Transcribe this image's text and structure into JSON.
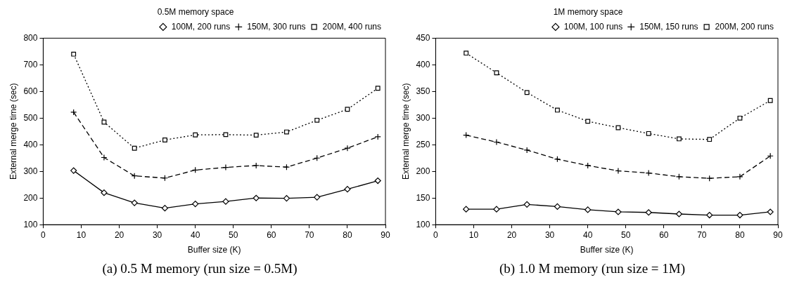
{
  "chart_data": [
    {
      "type": "line",
      "title": "0.5M memory space",
      "xlabel": "Buffer size (K)",
      "ylabel": "External merge time (sec)",
      "x": [
        8,
        16,
        24,
        32,
        40,
        48,
        56,
        64,
        72,
        80,
        88
      ],
      "xlim": [
        0,
        90
      ],
      "xticks": [
        0,
        10,
        20,
        30,
        40,
        50,
        60,
        70,
        80,
        90
      ],
      "ylim": [
        100,
        800
      ],
      "yticks": [
        100,
        200,
        300,
        400,
        500,
        600,
        700,
        800
      ],
      "grid": false,
      "legend": "top right",
      "annotations": [
        "(a) 0.5 M memory (run size = 0.5M)"
      ],
      "series": [
        {
          "name": "100M, 200 runs",
          "color": "#000000",
          "marker": "diamond",
          "line_style": "solid",
          "values": [
            303,
            220,
            182,
            162,
            178,
            187,
            200,
            199,
            203,
            233,
            265
          ]
        },
        {
          "name": "150M, 300 runs",
          "color": "#000000",
          "marker": "cross",
          "line_style": "dashed",
          "values": [
            522,
            352,
            283,
            275,
            305,
            315,
            322,
            316,
            350,
            387,
            430
          ]
        },
        {
          "name": "200M, 400 runs",
          "color": "#000000",
          "marker": "square",
          "line_style": "dotted",
          "values": [
            740,
            485,
            387,
            418,
            437,
            438,
            436,
            448,
            492,
            533,
            612
          ]
        }
      ]
    },
    {
      "type": "line",
      "title": "1M memory space",
      "xlabel": "Buffer size (K)",
      "ylabel": "External merge time (sec)",
      "x": [
        8,
        16,
        24,
        32,
        40,
        48,
        56,
        64,
        72,
        80,
        88
      ],
      "xlim": [
        0,
        90
      ],
      "xticks": [
        0,
        10,
        20,
        30,
        40,
        50,
        60,
        70,
        80,
        90
      ],
      "ylim": [
        100,
        450
      ],
      "yticks": [
        100,
        150,
        200,
        250,
        300,
        350,
        400,
        450
      ],
      "grid": false,
      "legend": "top right",
      "annotations": [
        "(b) 1.0 M memory (run size = 1M)"
      ],
      "series": [
        {
          "name": "100M, 100 runs",
          "color": "#000000",
          "marker": "diamond",
          "line_style": "solid",
          "values": [
            129,
            129,
            138,
            134,
            128,
            124,
            123,
            120,
            118,
            118,
            124
          ]
        },
        {
          "name": "150M, 150 runs",
          "color": "#000000",
          "marker": "cross",
          "line_style": "dashed",
          "values": [
            268,
            255,
            240,
            223,
            211,
            201,
            197,
            190,
            187,
            190,
            229
          ]
        },
        {
          "name": "200M, 200 runs",
          "color": "#000000",
          "marker": "square",
          "line_style": "dotted",
          "values": [
            422,
            385,
            348,
            315,
            294,
            282,
            271,
            261,
            260,
            300,
            333
          ]
        }
      ]
    }
  ]
}
